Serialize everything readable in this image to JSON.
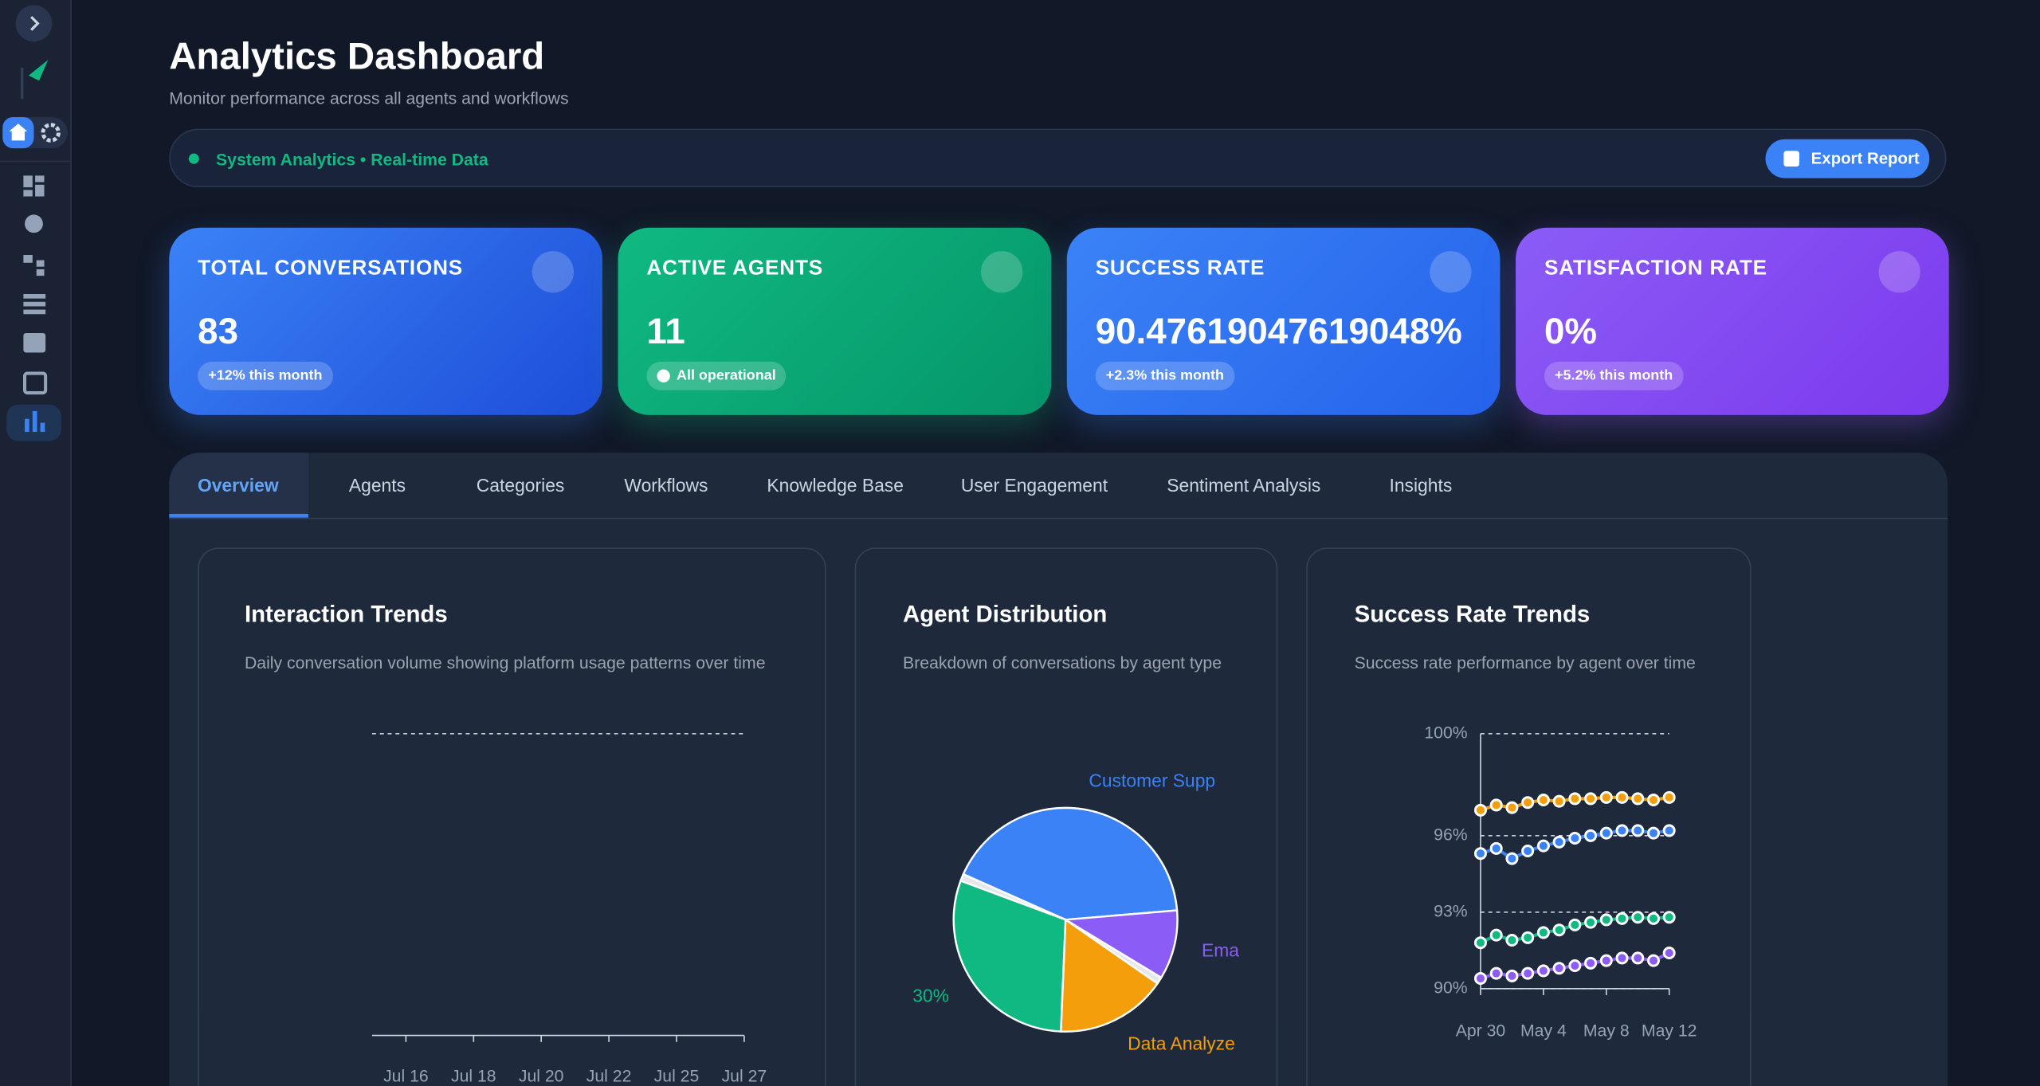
{
  "header": {
    "title": "Analytics Dashboard",
    "subtitle": "Monitor performance across all agents and workflows"
  },
  "status_bar": {
    "text": "System Analytics • Real-time Data",
    "button": "Export Report"
  },
  "stats": [
    {
      "title": "TOTAL CONVERSATIONS",
      "value": "83",
      "badge": "+12% this month"
    },
    {
      "title": "ACTIVE AGENTS",
      "value": "11",
      "badge": "All operational"
    },
    {
      "title": "SUCCESS RATE",
      "value": "90.47619047619048%",
      "badge": "+2.3% this month"
    },
    {
      "title": "SATISFACTION RATE",
      "value": "0%",
      "badge": "+5.2% this month"
    }
  ],
  "tabs": {
    "items": [
      "Overview",
      "Agents",
      "Categories",
      "Workflows",
      "Knowledge Base",
      "User Engagement",
      "Sentiment Analysis",
      "Insights"
    ],
    "active": 0
  },
  "chart_data": [
    {
      "type": "line",
      "title": "Interaction Trends",
      "subtitle": "Daily conversation volume showing platform usage patterns over time",
      "categories": [
        "Jul 16",
        "Jul 18",
        "Jul 20",
        "Jul 22",
        "Jul 25",
        "Jul 27"
      ]
    },
    {
      "type": "pie",
      "title": "Agent Distribution",
      "subtitle": "Breakdown of conversations by agent type",
      "categories": [
        "Customer Supp",
        "Ema",
        null,
        "Data Analyze",
        null,
        null
      ],
      "values": [
        42,
        10,
        1,
        16,
        30,
        1
      ],
      "value_labels": [
        null,
        null,
        null,
        null,
        "30%",
        null
      ],
      "colors": [
        "#3b82f6",
        "#8b5cf6",
        "#e5e7eb",
        "#f59e0b",
        "#10b981",
        "#e5e7eb"
      ]
    },
    {
      "type": "line",
      "title": "Success Rate Trends",
      "subtitle": "Success rate performance by agent over time",
      "categories": [
        "Apr 30",
        null,
        null,
        null,
        "May 4",
        null,
        null,
        null,
        "May 8",
        null,
        null,
        null,
        "May 12"
      ],
      "ylim": [
        90,
        100
      ],
      "yticks": [
        {
          "value": 90,
          "label": "90%"
        },
        {
          "value": 93,
          "label": "93%"
        },
        {
          "value": 96,
          "label": "96%"
        },
        {
          "value": 100,
          "label": "100%"
        }
      ],
      "grid": true,
      "series": [
        {
          "color": "#f59e0b",
          "values": [
            97.0,
            97.2,
            97.1,
            97.3,
            97.4,
            97.35,
            97.45,
            97.45,
            97.5,
            97.5,
            97.45,
            97.4,
            97.5
          ]
        },
        {
          "color": "#3b82f6",
          "values": [
            95.3,
            95.5,
            95.1,
            95.4,
            95.6,
            95.75,
            95.9,
            96.0,
            96.1,
            96.2,
            96.2,
            96.1,
            96.2
          ]
        },
        {
          "color": "#10b981",
          "values": [
            91.8,
            92.1,
            91.9,
            92.0,
            92.2,
            92.3,
            92.5,
            92.6,
            92.7,
            92.75,
            92.8,
            92.75,
            92.8
          ]
        },
        {
          "color": "#8b5cf6",
          "values": [
            90.4,
            90.6,
            90.5,
            90.6,
            90.7,
            90.8,
            90.9,
            91.0,
            91.1,
            91.2,
            91.2,
            91.1,
            91.4
          ]
        }
      ]
    }
  ]
}
